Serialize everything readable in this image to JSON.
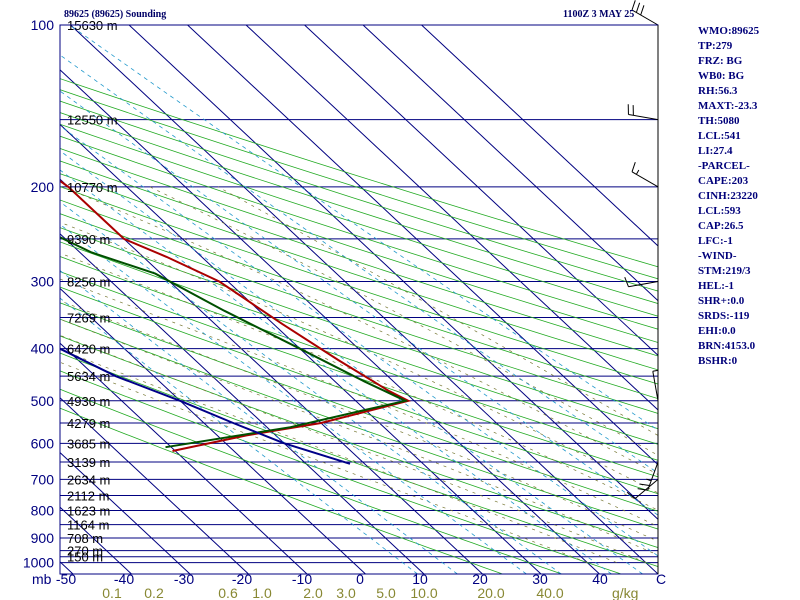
{
  "header": {
    "title": "89625 (89625) Sounding",
    "datetime": "1100Z  3 MAY 25"
  },
  "stats": [
    "WMO:89625",
    "TP:279",
    "FRZ: BG",
    "WB0: BG",
    "RH:56.3",
    "MAXT:-23.3",
    "TH:5080",
    "LCL:541",
    "LI:27.4",
    "-PARCEL-",
    "CAPE:203",
    "CINH:23220",
    "LCL:593",
    "CAP:26.5",
    "LFC:-1",
    "-WIND-",
    "STM:219/3",
    "HEL:-1",
    "SHR+:0.0",
    "SRDS:-119",
    "EHI:0.0",
    "BRN:4153.0",
    "BSHR:0"
  ],
  "chart_data": {
    "type": "skew-t",
    "x_unit_label": "C",
    "y_unit_label": "mb",
    "mixing_ratio_unit_label": "g/kg",
    "pressure_ticks": [
      100,
      200,
      300,
      400,
      500,
      600,
      700,
      800,
      900,
      1000
    ],
    "temperature_ticks": [
      -50,
      -40,
      -30,
      -20,
      -10,
      0,
      10,
      20,
      30,
      40
    ],
    "mixing_ratio_ticks": [
      "0.1",
      "0.2",
      "0.6",
      "1.0",
      "2.0",
      "3.0",
      "5.0",
      "10.0",
      "20.0",
      "40.0"
    ],
    "mixing_ratio_values": [
      0.1,
      0.2,
      0.6,
      1.0,
      2.0,
      3.0,
      5.0,
      10.0,
      20.0,
      40.0
    ],
    "height_levels": [
      {
        "p": 100,
        "label": "15630 m"
      },
      {
        "p": 150,
        "label": "12550 m"
      },
      {
        "p": 200,
        "label": "10770 m"
      },
      {
        "p": 250,
        "label": "9390 m"
      },
      {
        "p": 300,
        "label": "8250 m"
      },
      {
        "p": 350,
        "label": "7269 m"
      },
      {
        "p": 400,
        "label": "6420 m"
      },
      {
        "p": 450,
        "label": "5634 m"
      },
      {
        "p": 500,
        "label": "4930 m"
      },
      {
        "p": 550,
        "label": "4279 m"
      },
      {
        "p": 600,
        "label": "3685 m"
      },
      {
        "p": 650,
        "label": "3139 m"
      },
      {
        "p": 700,
        "label": "2634 m"
      },
      {
        "p": 750,
        "label": "2112 m"
      },
      {
        "p": 800,
        "label": "1623 m"
      },
      {
        "p": 850,
        "label": "1164 m"
      },
      {
        "p": 900,
        "label": "708 m"
      },
      {
        "p": 950,
        "label": "270 m"
      },
      {
        "p": 975,
        "label": "150 m"
      }
    ],
    "series": [
      {
        "name": "temperature",
        "color": "#aa0000",
        "points": [
          {
            "p": 620,
            "t": -60.5
          },
          {
            "p": 580,
            "t": -45
          },
          {
            "p": 550,
            "t": -30
          },
          {
            "p": 500,
            "t": -11
          },
          {
            "p": 480,
            "t": -12.5
          },
          {
            "p": 420,
            "t": -15.5
          },
          {
            "p": 360,
            "t": -18.5
          },
          {
            "p": 300,
            "t": -21.5
          },
          {
            "p": 270,
            "t": -26
          },
          {
            "p": 250,
            "t": -30
          },
          {
            "p": 230,
            "t": -30
          },
          {
            "p": 200,
            "t": -30
          },
          {
            "p": 170,
            "t": -32
          },
          {
            "p": 150,
            "t": -36.5
          },
          {
            "p": 120,
            "t": -45
          },
          {
            "p": 100,
            "t": -51.5
          }
        ]
      },
      {
        "name": "dewpoint",
        "color": "#005000",
        "points": [
          {
            "p": 610,
            "t": -61
          },
          {
            "p": 560,
            "t": -36
          },
          {
            "p": 520,
            "t": -20
          },
          {
            "p": 500,
            "t": -11.5
          },
          {
            "p": 460,
            "t": -15
          },
          {
            "p": 400,
            "t": -20
          },
          {
            "p": 340,
            "t": -26
          },
          {
            "p": 290,
            "t": -31
          },
          {
            "p": 265,
            "t": -38
          },
          {
            "p": 240,
            "t": -42
          },
          {
            "p": 200,
            "t": -53
          },
          {
            "p": 150,
            "t": -62
          },
          {
            "p": 120,
            "t": -64
          },
          {
            "p": 100,
            "t": -66
          }
        ]
      },
      {
        "name": "parcel",
        "color": "#000088",
        "points": [
          {
            "p": 655,
            "t": -32.5
          },
          {
            "p": 600,
            "t": -40
          },
          {
            "p": 550,
            "t": -45
          },
          {
            "p": 500,
            "t": -50
          },
          {
            "p": 450,
            "t": -56.5
          },
          {
            "p": 400,
            "t": -61
          },
          {
            "p": 350,
            "t": -67
          },
          {
            "p": 300,
            "t": -71.5
          },
          {
            "p": 255,
            "t": -77
          }
        ]
      }
    ],
    "winds": [
      {
        "p": 100,
        "dir": 300,
        "spd": 30
      },
      {
        "p": 150,
        "dir": 280,
        "spd": 20
      },
      {
        "p": 200,
        "dir": 300,
        "spd": 15
      },
      {
        "p": 300,
        "dir": 260,
        "spd": 10
      },
      {
        "p": 500,
        "dir": 350,
        "spd": 5
      },
      {
        "p": 650,
        "dir": 200,
        "spd": 25
      },
      {
        "p": 700,
        "dir": 230,
        "spd": 10
      }
    ]
  }
}
